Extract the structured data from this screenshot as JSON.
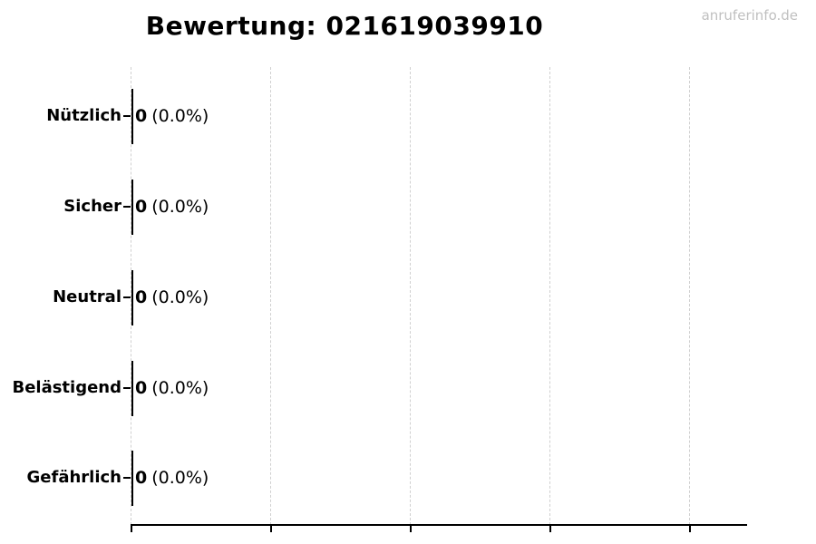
{
  "watermark": "anruferinfo.de",
  "chart_data": {
    "type": "bar",
    "orientation": "horizontal",
    "title": "Bewertung: 021619039910",
    "categories": [
      "Nützlich",
      "Sicher",
      "Neutral",
      "Belästigend",
      "Gefährlich"
    ],
    "values": [
      0,
      0,
      0,
      0,
      0
    ],
    "percent_labels": [
      "(0.0%)",
      "(0.0%)",
      "(0.0%)",
      "(0.0%)",
      "(0.0%)"
    ],
    "xlabel": "",
    "ylabel": "",
    "x_tick_labels": [],
    "grid": "vertical-dashed",
    "gridline_count": 5,
    "legend": "none",
    "bar_color": "#000000",
    "grid_color": "#d0d0d0",
    "watermark_color": "#c0c0c0"
  }
}
